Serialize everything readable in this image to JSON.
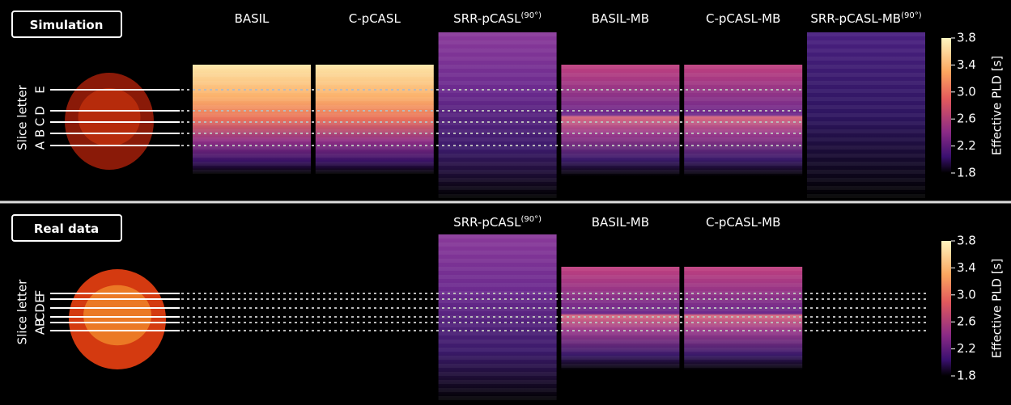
{
  "panels": [
    {
      "label": "Simulation",
      "columns": [
        {
          "text": "BASIL"
        },
        {
          "text": "C-pCASL"
        },
        {
          "text": "SRR-pCASL",
          "sup": "(90°)"
        },
        {
          "text": "BASIL-MB"
        },
        {
          "text": "C-pCASL-MB"
        },
        {
          "text": "SRR-pCASL-MB",
          "sup": "(90°)"
        }
      ],
      "axis_label": "Slice letter",
      "slices": [
        "A",
        "B",
        "C",
        "D",
        "E"
      ],
      "colorbar": {
        "label": "Effective PLD [s]",
        "ticks": [
          "3.8",
          "3.4",
          "3.0",
          "2.6",
          "2.2",
          "1.8"
        ]
      }
    },
    {
      "label": "Real data",
      "columns": [
        {
          "text": "SRR-pCASL",
          "sup": "(90°)"
        },
        {
          "text": "BASIL-MB"
        },
        {
          "text": "C-pCASL-MB"
        }
      ],
      "axis_label": "Slice letter",
      "slices": [
        "A",
        "B",
        "C",
        "D",
        "E",
        "F"
      ],
      "colorbar": {
        "label": "Effective PLD [s]",
        "ticks": [
          "3.8",
          "3.4",
          "3.0",
          "2.6",
          "2.2",
          "1.8"
        ]
      }
    }
  ]
}
